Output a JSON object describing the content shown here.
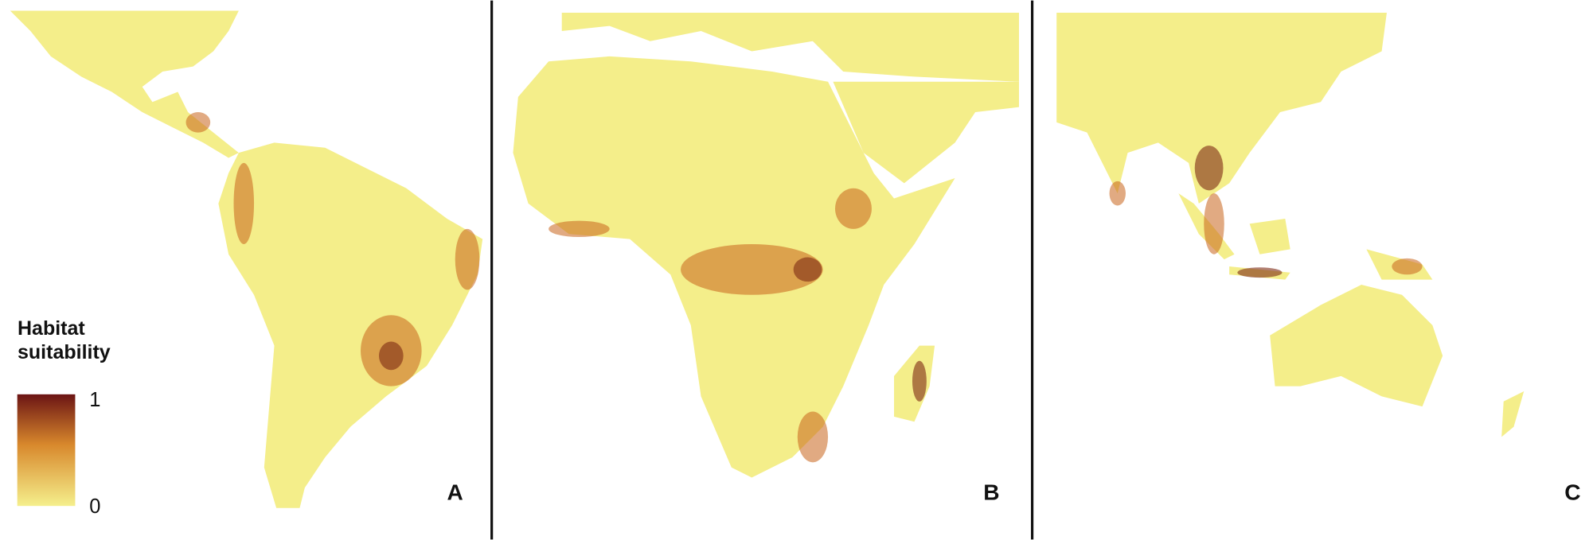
{
  "legend": {
    "title": "Habitat suitability",
    "max": 1,
    "min": 0
  },
  "panels": [
    {
      "label": "A"
    },
    {
      "label": "B"
    },
    {
      "label": "C"
    }
  ]
}
